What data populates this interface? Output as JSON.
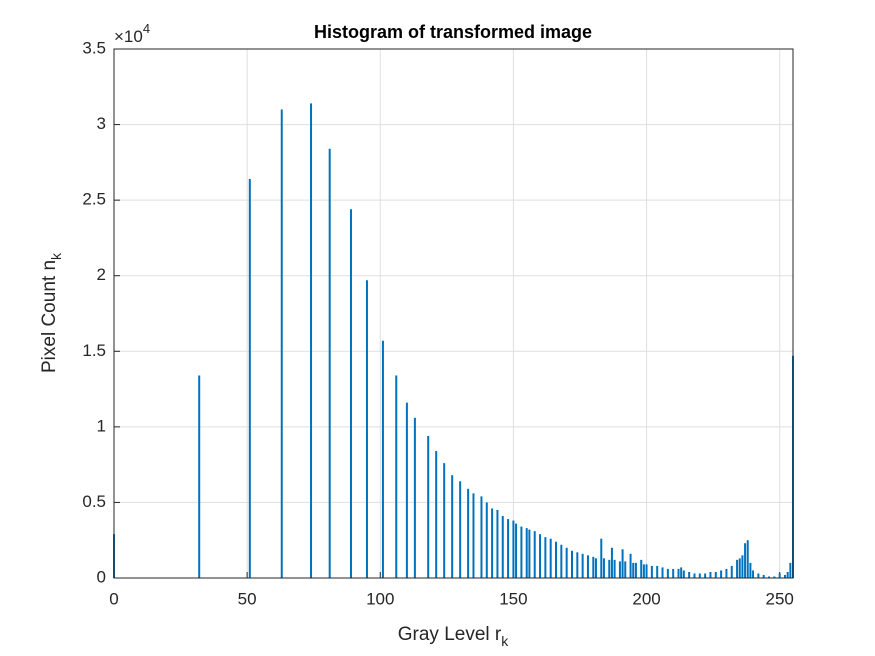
{
  "chart_data": {
    "type": "bar",
    "title": "Histogram of transformed image",
    "x_label": "Gray Level r",
    "x_label_sub": "k",
    "y_label": "Pixel Count n",
    "y_label_sub": "k",
    "y_multiplier": "×10",
    "y_multiplier_power": "4",
    "color": "#0072bd",
    "x": [
      0,
      32,
      51,
      63,
      74,
      81,
      89,
      95,
      101,
      106,
      110,
      113,
      118,
      121,
      124,
      127,
      130,
      133,
      135,
      138,
      140,
      142,
      144,
      146,
      148,
      150,
      151,
      153,
      155,
      156,
      158,
      160,
      162,
      164,
      166,
      168,
      170,
      172,
      174,
      176,
      178,
      180,
      181,
      183,
      184,
      186,
      187,
      188,
      190,
      191,
      192,
      194,
      195,
      196,
      198,
      199,
      200,
      202,
      204,
      206,
      208,
      210,
      212,
      213,
      214,
      216,
      218,
      220,
      222,
      224,
      226,
      228,
      230,
      232,
      234,
      235,
      236,
      237,
      238,
      239,
      240,
      242,
      244,
      246,
      248,
      250,
      252,
      253,
      254,
      255
    ],
    "values": [
      2900,
      13400,
      26400,
      31000,
      31400,
      28400,
      24400,
      19700,
      15700,
      13400,
      11600,
      10600,
      9400,
      8400,
      7600,
      6800,
      6400,
      5900,
      5600,
      5400,
      5000,
      4600,
      4500,
      4100,
      3900,
      3800,
      3600,
      3400,
      3300,
      3200,
      3100,
      2900,
      2700,
      2600,
      2400,
      2200,
      2000,
      1800,
      1700,
      1600,
      1500,
      1400,
      1300,
      2600,
      1300,
      1200,
      2000,
      1200,
      1100,
      1900,
      1100,
      1600,
      1000,
      1000,
      1200,
      900,
      900,
      800,
      800,
      700,
      600,
      600,
      600,
      700,
      500,
      400,
      300,
      300,
      300,
      400,
      400,
      500,
      600,
      800,
      1200,
      1300,
      1500,
      2300,
      2500,
      1000,
      500,
      300,
      200,
      100,
      100,
      300,
      200,
      400,
      1000,
      14700
    ],
    "xlim": [
      0,
      255
    ],
    "xticks": [
      0,
      50,
      100,
      150,
      200,
      250
    ],
    "ylim": [
      0,
      35000
    ],
    "yticks": [
      0,
      {
        "value": 5000,
        "label": "0.5"
      },
      {
        "value": 10000,
        "label": "1"
      },
      {
        "value": 15000,
        "label": "1.5"
      },
      {
        "value": 20000,
        "label": "2"
      },
      {
        "value": 25000,
        "label": "2.5"
      },
      {
        "value": 30000,
        "label": "3"
      },
      {
        "value": 35000,
        "label": "3.5"
      }
    ],
    "grid": true
  }
}
